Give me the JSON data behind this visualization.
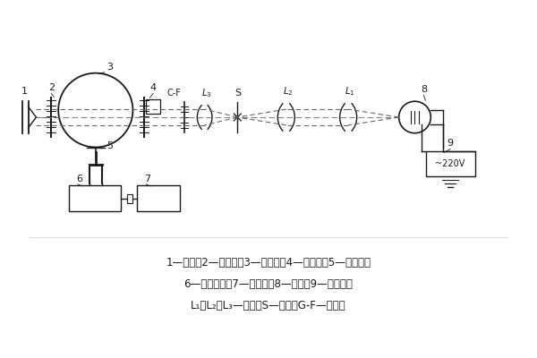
{
  "bg_color": "#ffffff",
  "line_color": "#1a1a1a",
  "beam_color": "#666666",
  "fig_width": 6.0,
  "fig_height": 4.0,
  "dpi": 100,
  "caption_lines": [
    "1—陷阱；2—标准板；3—积分球；4—试样架；5—光电池；",
    "6—控制线路；7—检流计；8—光源；9—稳压器；",
    "L₁，L₂，L₃—透镜；S—光孔；G-F—滤光器"
  ]
}
